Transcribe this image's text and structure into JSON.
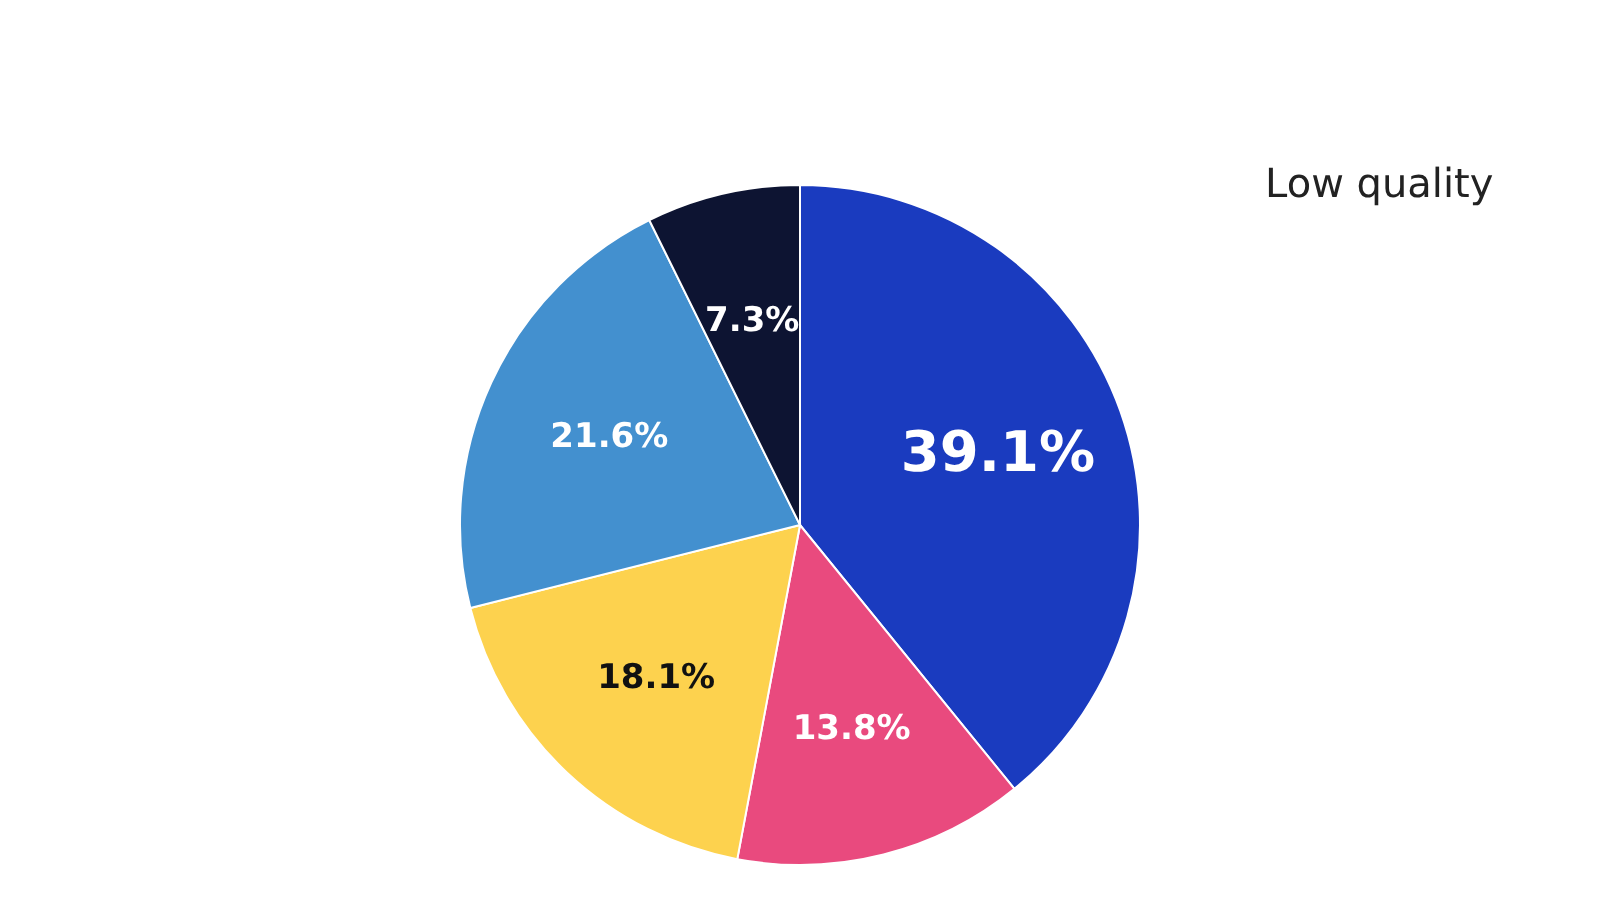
{
  "chart_data": {
    "type": "pie",
    "categories": [
      "Low quality",
      null,
      null,
      null,
      null
    ],
    "values": [
      39.1,
      13.8,
      18.1,
      21.6,
      7.3
    ],
    "colors": [
      "#1a3bbf",
      "#e94a7e",
      "#fdd24e",
      "#4390cf",
      "#0d1432"
    ],
    "value_labels": [
      "39.1%",
      "13.8%",
      "18.1%",
      "21.6%",
      "7.3%"
    ],
    "legend": false
  }
}
